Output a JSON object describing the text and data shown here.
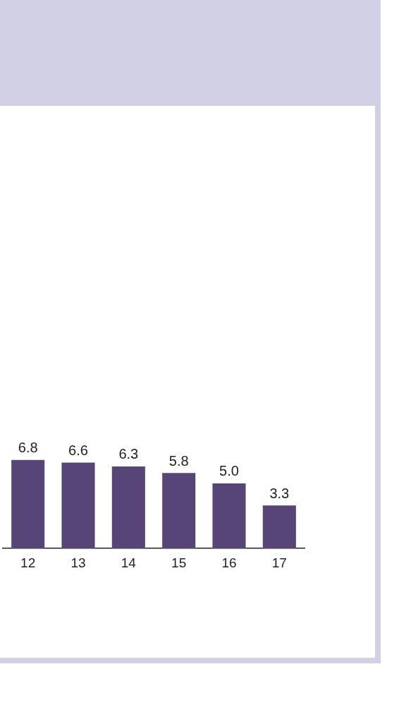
{
  "chart_data": {
    "type": "bar",
    "categories": [
      "12",
      "13",
      "14",
      "15",
      "16",
      "17"
    ],
    "values": [
      6.8,
      6.6,
      6.3,
      5.8,
      5.0,
      3.3
    ],
    "value_labels": [
      "6.8",
      "6.6",
      "6.3",
      "5.8",
      "5.0",
      "3.3"
    ],
    "color": "#584578",
    "grid": false,
    "legend": false
  }
}
